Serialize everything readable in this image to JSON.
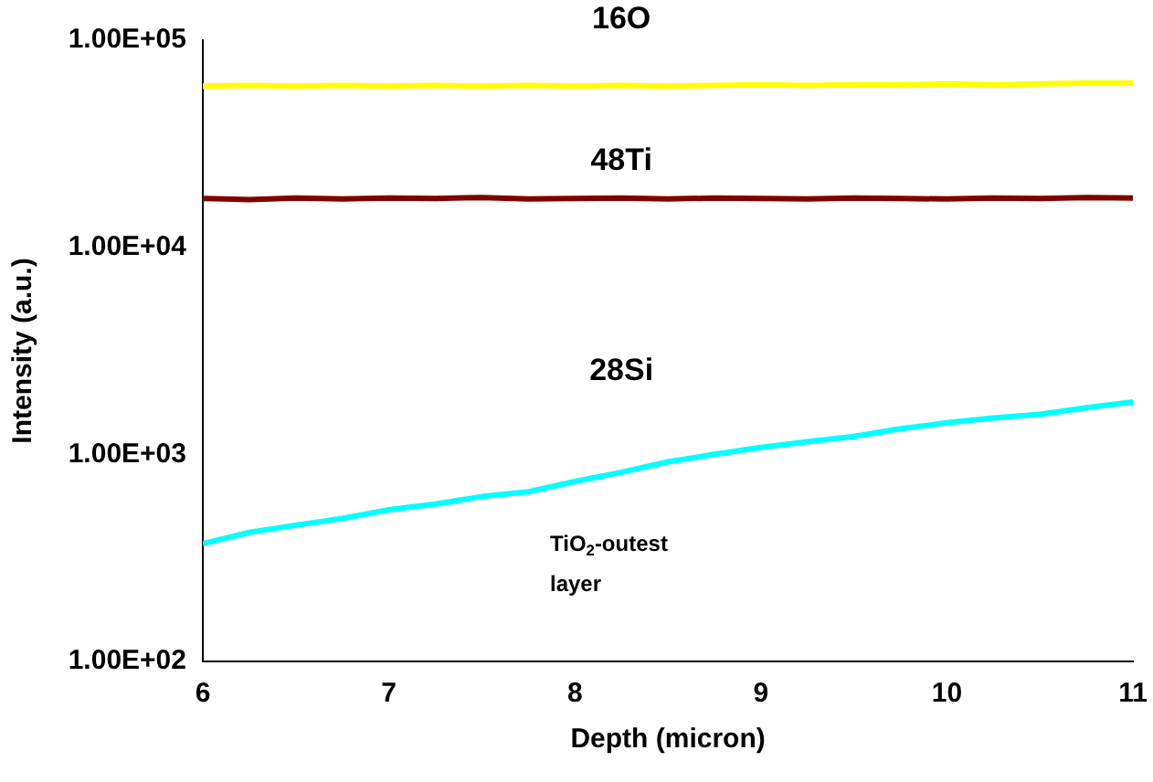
{
  "chart_data": {
    "type": "line",
    "xlabel": "Depth (micron)",
    "ylabel": "Intensity (a.u.)",
    "log": "y",
    "grid": false,
    "legend": false,
    "marker": "none",
    "line_style": "solid",
    "xlim": [
      6,
      11
    ],
    "xticks": [
      6,
      7,
      8,
      9,
      10,
      11
    ],
    "ylim": [
      100,
      100000
    ],
    "yticks": [
      {
        "value": 100,
        "label": "1.00E+02"
      },
      {
        "value": 1000,
        "label": "1.00E+03"
      },
      {
        "value": 10000,
        "label": "1.00E+04"
      },
      {
        "value": 100000,
        "label": "1.00E+05"
      }
    ],
    "x": [
      6,
      6.25,
      6.5,
      6.75,
      7,
      7.25,
      7.5,
      7.75,
      8,
      8.25,
      8.5,
      8.75,
      9,
      9.25,
      9.5,
      9.75,
      10,
      10.25,
      10.5,
      10.75,
      11
    ],
    "series": [
      {
        "name": "16O",
        "color": "#ffff00",
        "values": [
          60000,
          60500,
          60000,
          60500,
          60000,
          60500,
          60000,
          60500,
          60000,
          60500,
          60000,
          60500,
          61000,
          60500,
          61000,
          61000,
          61500,
          61000,
          61500,
          62000,
          62000
        ]
      },
      {
        "name": "48Ti",
        "color": "#800000",
        "values": [
          17200,
          17000,
          17300,
          17100,
          17300,
          17200,
          17400,
          17100,
          17200,
          17300,
          17100,
          17300,
          17200,
          17100,
          17300,
          17200,
          17100,
          17300,
          17200,
          17400,
          17300
        ]
      },
      {
        "name": "28Si",
        "color": "#00ffff",
        "values": [
          370,
          420,
          455,
          490,
          540,
          575,
          625,
          660,
          740,
          820,
          920,
          1000,
          1080,
          1150,
          1220,
          1330,
          1420,
          1500,
          1560,
          1680,
          1790
        ]
      }
    ],
    "annotations": [
      "TiO$_{2}$-outest layer"
    ]
  }
}
